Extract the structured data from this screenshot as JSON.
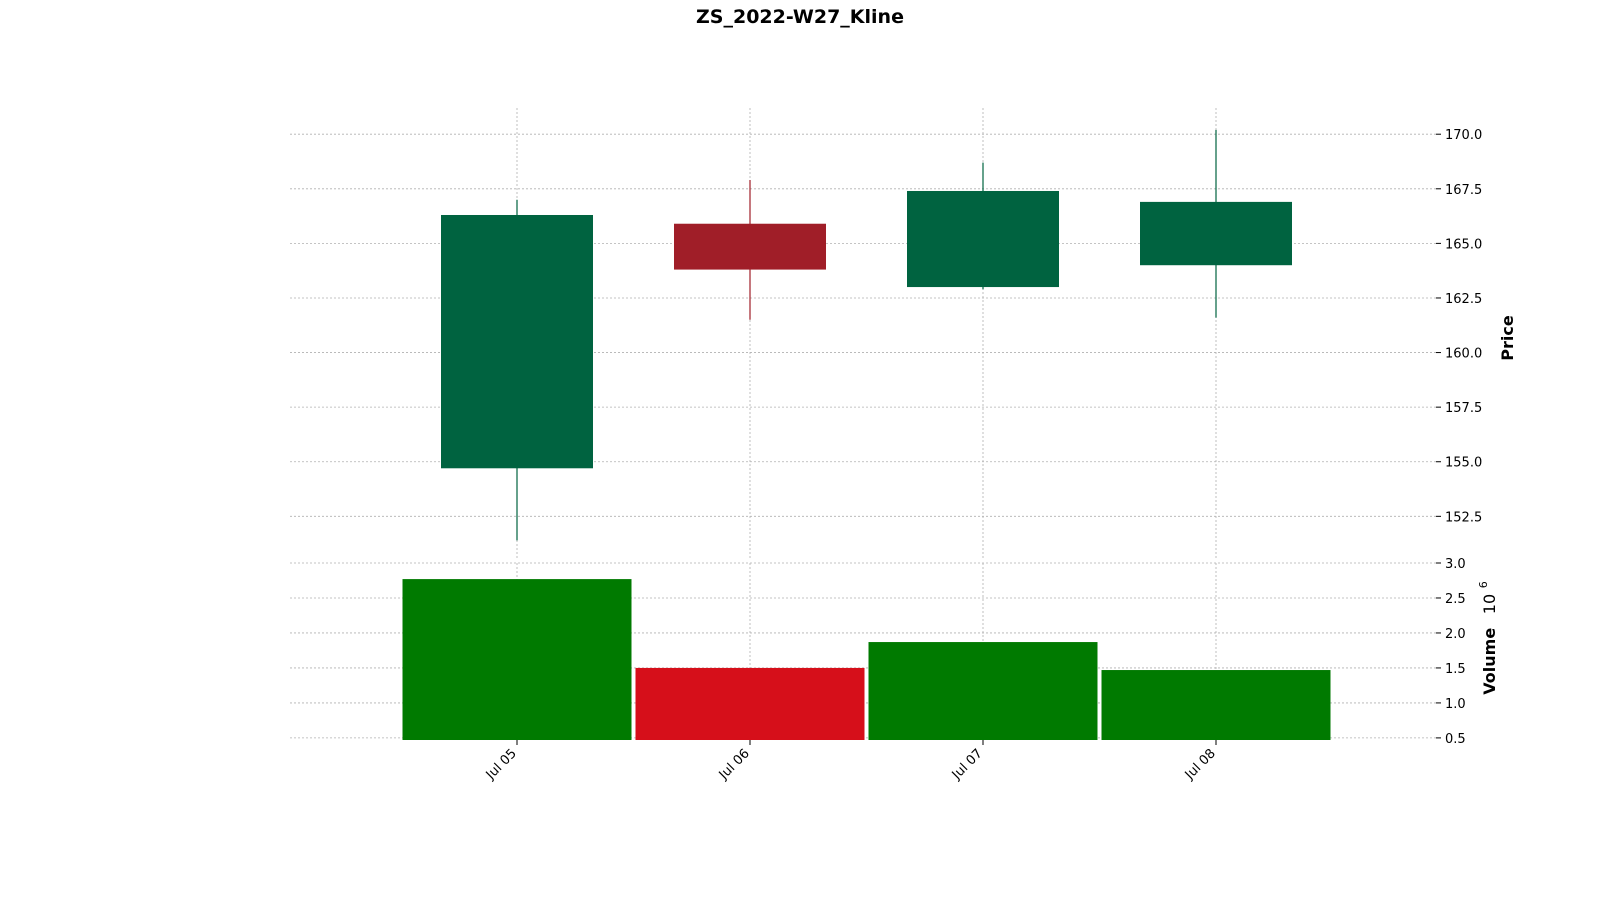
{
  "chart_data": {
    "type": "candlestick",
    "title": "ZS_2022-W27_Kline",
    "categories": [
      "Jul 05",
      "Jul 06",
      "Jul 07",
      "Jul 08"
    ],
    "ohlc": [
      {
        "date": "Jul 05",
        "open": 154.7,
        "high": 167.0,
        "low": 151.4,
        "close": 166.3
      },
      {
        "date": "Jul 06",
        "open": 165.9,
        "high": 167.9,
        "low": 161.5,
        "close": 163.8
      },
      {
        "date": "Jul 07",
        "open": 163.0,
        "high": 168.7,
        "low": 162.9,
        "close": 167.4
      },
      {
        "date": "Jul 08",
        "open": 164.0,
        "high": 170.2,
        "low": 161.6,
        "close": 166.9
      }
    ],
    "volume": [
      2.77,
      1.5,
      1.87,
      1.47
    ],
    "price_axis": {
      "label": "Price",
      "ylim": [
        150.5,
        171.2
      ],
      "ticks": [
        "152.5",
        "155.0",
        "157.5",
        "160.0",
        "162.5",
        "165.0",
        "167.5",
        "170.0"
      ]
    },
    "volume_axis": {
      "label": "Volume",
      "exponent_label": "10",
      "exponent_power": "6",
      "ylim": [
        0.47,
        3.0
      ],
      "ticks": [
        "0.5",
        "1.0",
        "1.5",
        "2.0",
        "2.5",
        "3.0"
      ]
    },
    "colors": {
      "up_candle": "#006340",
      "down_candle": "#a01e28",
      "up_volume": "#007a00",
      "down_volume": "#d60f1a",
      "grid": "#b0b0b0"
    },
    "grid": true
  }
}
